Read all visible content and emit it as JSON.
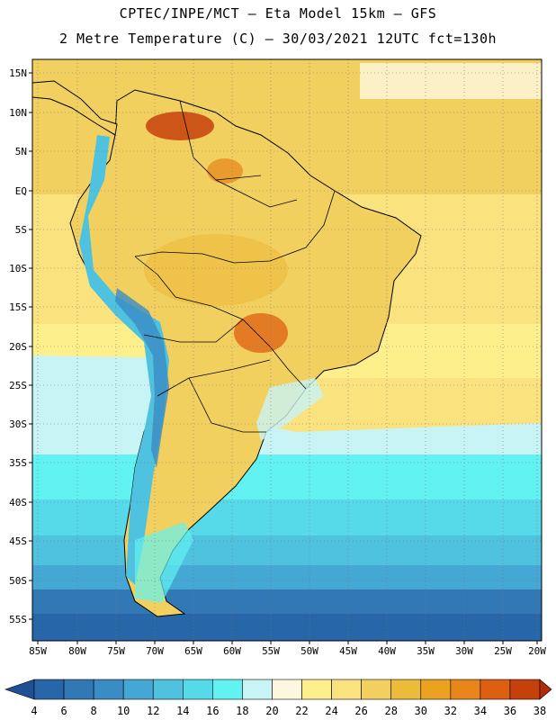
{
  "header": {
    "title_line1": "CPTEC/INPE/MCT —  Eta Model 15km — GFS",
    "title_line2": "2 Metre Temperature (C) — 30/03/2021 12UTC fct=130h"
  },
  "map": {
    "lat_labels": [
      "15N",
      "10N",
      "5N",
      "EQ",
      "5S",
      "10S",
      "15S",
      "20S",
      "25S",
      "30S",
      "35S",
      "40S",
      "45S",
      "50S",
      "55S"
    ],
    "lon_labels": [
      "85W",
      "80W",
      "75W",
      "70W",
      "65W",
      "60W",
      "55W",
      "50W",
      "45W",
      "40W",
      "35W",
      "30W",
      "25W",
      "20W"
    ]
  },
  "colorbar": {
    "values": [
      "4",
      "6",
      "8",
      "10",
      "12",
      "14",
      "16",
      "18",
      "20",
      "22",
      "24",
      "26",
      "28",
      "30",
      "32",
      "34",
      "36",
      "38"
    ],
    "colors": [
      "#1f4f94",
      "#2766a8",
      "#3178b5",
      "#3a8cc4",
      "#45a7d3",
      "#4ec2de",
      "#56d9e8",
      "#62f2f2",
      "#c8f4f6",
      "#fcf8e0",
      "#fdf08c",
      "#fae27e",
      "#f2d060",
      "#edbb3a",
      "#eaa220",
      "#e7841a",
      "#dd5f10",
      "#c5400a",
      "#b02c05"
    ]
  }
}
